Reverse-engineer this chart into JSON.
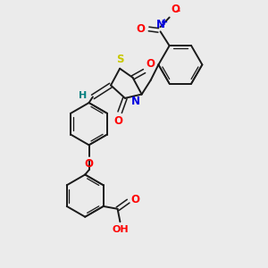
{
  "background_color": "#ebebeb",
  "bond_color": "#1a1a1a",
  "atom_colors": {
    "S": "#c8c800",
    "N": "#0000e0",
    "O": "#ff0000",
    "H": "#008080",
    "C": "#1a1a1a"
  },
  "figsize": [
    3.0,
    3.0
  ],
  "dpi": 100
}
